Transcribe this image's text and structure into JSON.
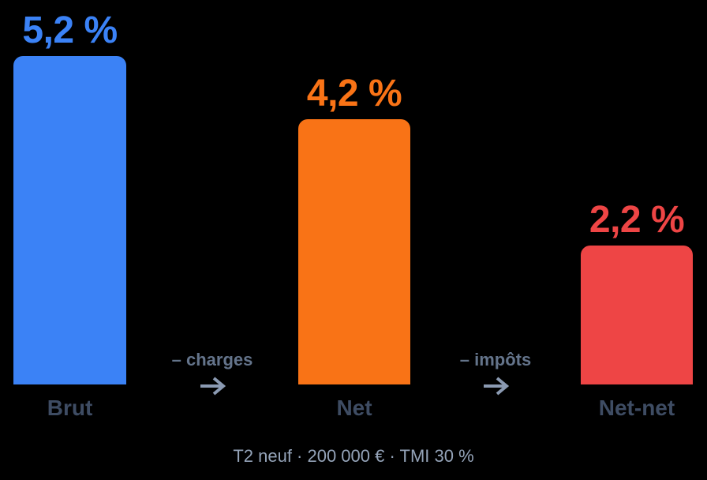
{
  "chart_data": {
    "type": "bar",
    "title": "",
    "categories": [
      "Brut",
      "Net",
      "Net-net"
    ],
    "values": [
      5.2,
      4.2,
      2.2
    ],
    "value_labels": [
      "5,2 %",
      "4,2 %",
      "2,2 %"
    ],
    "bar_colors": [
      "#3b82f6",
      "#f97316",
      "#ee4545"
    ],
    "transitions": [
      {
        "label": "– charges",
        "icon": "arrow-right-icon"
      },
      {
        "label": "– impôts",
        "icon": "arrow-right-icon"
      }
    ],
    "caption": "T2 neuf · 200 000 € · TMI 30 %",
    "xlabel": "",
    "ylabel": "",
    "ylim": [
      0,
      5.2
    ],
    "grid": false,
    "legend": false
  },
  "colors": {
    "blue": "#3b82f6",
    "orange": "#f97316",
    "red": "#ee4545",
    "category_label": "#3e4c63",
    "transition_text": "#64748b",
    "arrow": "#8b9ab2",
    "caption": "#94a3b8",
    "background": "#000000"
  }
}
